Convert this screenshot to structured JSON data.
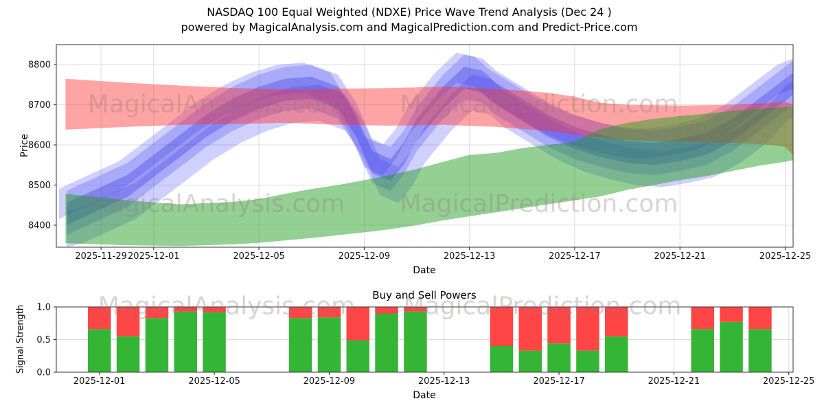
{
  "header": {
    "title": "NASDAQ 100 Equal Weighted (NDXE) Price Wave Trend Analysis (Dec 24 )",
    "subtitle": "powered by MagicalAnalysis.com and MagicalPrediction.com and Predict-Price.com"
  },
  "watermarks": {
    "analysis": "MagicalAnalysis.com",
    "prediction": "MagicalPrediction.com"
  },
  "chart_data": [
    {
      "id": "price",
      "type": "area",
      "title": "",
      "xlabel": "Date",
      "ylabel": "Price",
      "x_epoch": "2025-11-28",
      "x_unit": "days since 2025-11-28",
      "xlim_days": [
        -0.7,
        27.3
      ],
      "ylim": [
        8345,
        8850
      ],
      "grid": true,
      "x_ticks": [
        {
          "day": 1,
          "label": "2025-11-29"
        },
        {
          "day": 3,
          "label": "2025-12-01"
        },
        {
          "day": 7,
          "label": "2025-12-05"
        },
        {
          "day": 11,
          "label": "2025-12-09"
        },
        {
          "day": 15,
          "label": "2025-12-13"
        },
        {
          "day": 19,
          "label": "2025-12-17"
        },
        {
          "day": 23,
          "label": "2025-12-21"
        },
        {
          "day": 27,
          "label": "2025-12-25"
        }
      ],
      "y_ticks": [
        {
          "v": 8400,
          "label": "8400"
        },
        {
          "v": 8500,
          "label": "8500"
        },
        {
          "v": 8600,
          "label": "8600"
        },
        {
          "v": 8700,
          "label": "8700"
        },
        {
          "v": 8800,
          "label": "8800"
        }
      ],
      "bands": [
        {
          "name": "blue-wave-band-1",
          "color": "#4343f5",
          "opacity": 0.27,
          "d": [
            -0.3,
            0,
            1,
            2,
            3,
            4,
            5,
            6,
            7,
            8,
            9,
            10,
            10.7,
            11.3,
            12,
            12.5,
            13,
            14,
            14.8,
            15.5,
            16,
            17,
            18,
            19,
            20,
            21,
            22,
            23,
            24,
            25,
            26,
            27,
            27.3
          ],
          "lo": [
            8375,
            8385,
            8415,
            8445,
            8495,
            8545,
            8595,
            8635,
            8665,
            8685,
            8690,
            8665,
            8595,
            8505,
            8485,
            8525,
            8585,
            8665,
            8715,
            8705,
            8675,
            8635,
            8595,
            8565,
            8545,
            8530,
            8525,
            8535,
            8550,
            8585,
            8635,
            8685,
            8700
          ],
          "hi": [
            8485,
            8495,
            8525,
            8555,
            8605,
            8655,
            8705,
            8745,
            8775,
            8795,
            8800,
            8775,
            8705,
            8615,
            8595,
            8635,
            8695,
            8775,
            8825,
            8815,
            8785,
            8745,
            8705,
            8675,
            8655,
            8640,
            8635,
            8645,
            8660,
            8695,
            8745,
            8795,
            8810
          ]
        },
        {
          "name": "blue-wave-band-2",
          "color": "#4343f5",
          "opacity": 0.25,
          "d": [
            -0.6,
            -0.3,
            0.7,
            1.7,
            2.7,
            3.7,
            4.7,
            5.7,
            6.7,
            7.7,
            8.7,
            9.7,
            10.4,
            11,
            11.7,
            12.2,
            12.7,
            13.7,
            14.5,
            15.2,
            15.7,
            16.7,
            17.7,
            18.7,
            19.7,
            20.7,
            21.7,
            22.7,
            23.7,
            24.7,
            25.7,
            26.7,
            27.3
          ],
          "lo": [
            8415,
            8425,
            8455,
            8485,
            8535,
            8585,
            8635,
            8675,
            8705,
            8725,
            8730,
            8705,
            8635,
            8545,
            8525,
            8565,
            8625,
            8705,
            8755,
            8745,
            8715,
            8675,
            8635,
            8605,
            8585,
            8570,
            8565,
            8575,
            8590,
            8625,
            8675,
            8725,
            8740
          ],
          "hi": [
            8490,
            8500,
            8530,
            8560,
            8610,
            8660,
            8710,
            8750,
            8780,
            8800,
            8805,
            8780,
            8710,
            8620,
            8600,
            8640,
            8700,
            8780,
            8830,
            8820,
            8790,
            8750,
            8710,
            8680,
            8660,
            8645,
            8640,
            8650,
            8665,
            8700,
            8750,
            8800,
            8815
          ]
        },
        {
          "name": "blue-wave-band-3",
          "color": "#4343f5",
          "opacity": 0.25,
          "d": [
            -0.3,
            0.3,
            1.3,
            2.3,
            3.3,
            4.3,
            5.3,
            6.3,
            7.3,
            8.3,
            9.3,
            10.3,
            11,
            11.6,
            12.3,
            12.8,
            13.3,
            14.3,
            15.1,
            15.8,
            16.3,
            17.3,
            18.3,
            19.3,
            20.3,
            21.3,
            22.3,
            23.3,
            24.3,
            25.3,
            26.3,
            27,
            27.3
          ],
          "lo": [
            8345,
            8355,
            8385,
            8415,
            8465,
            8515,
            8565,
            8605,
            8635,
            8655,
            8660,
            8635,
            8565,
            8475,
            8455,
            8495,
            8555,
            8635,
            8685,
            8675,
            8645,
            8605,
            8565,
            8535,
            8515,
            8500,
            8495,
            8505,
            8520,
            8555,
            8605,
            8655,
            8670
          ],
          "hi": [
            8435,
            8445,
            8475,
            8505,
            8555,
            8605,
            8655,
            8695,
            8725,
            8745,
            8750,
            8725,
            8655,
            8565,
            8545,
            8585,
            8645,
            8725,
            8775,
            8765,
            8735,
            8695,
            8655,
            8625,
            8605,
            8590,
            8585,
            8595,
            8610,
            8645,
            8695,
            8745,
            8760
          ]
        },
        {
          "name": "blue-wave-band-4",
          "color": "#3030e0",
          "opacity": 0.32,
          "d": [
            -0.3,
            0,
            1,
            2,
            3,
            4,
            5,
            6,
            7,
            8,
            9,
            10,
            10.7,
            11.3,
            12,
            12.5,
            13,
            14,
            14.8,
            15.5,
            16,
            17,
            18,
            19,
            20,
            21,
            22,
            23,
            24,
            25,
            26,
            27,
            27.3
          ],
          "lo": [
            8400,
            8410,
            8440,
            8470,
            8520,
            8570,
            8620,
            8660,
            8690,
            8710,
            8715,
            8690,
            8620,
            8530,
            8510,
            8550,
            8610,
            8690,
            8740,
            8730,
            8700,
            8660,
            8620,
            8590,
            8570,
            8555,
            8550,
            8560,
            8575,
            8610,
            8660,
            8710,
            8725
          ],
          "hi": [
            8455,
            8465,
            8495,
            8525,
            8575,
            8625,
            8675,
            8715,
            8745,
            8765,
            8770,
            8745,
            8675,
            8585,
            8565,
            8605,
            8665,
            8745,
            8795,
            8785,
            8755,
            8715,
            8675,
            8645,
            8625,
            8610,
            8605,
            8615,
            8630,
            8665,
            8715,
            8765,
            8780
          ]
        },
        {
          "name": "red-resistance-band",
          "color": "#ff3030",
          "opacity": 0.44,
          "d": [
            -0.35,
            2,
            4,
            6,
            8,
            10,
            12,
            14,
            16,
            18,
            19,
            20,
            21,
            23,
            25,
            26.5,
            27,
            27.3
          ],
          "lo": [
            8638,
            8645,
            8650,
            8652,
            8655,
            8650,
            8648,
            8650,
            8645,
            8635,
            8625,
            8618,
            8612,
            8608,
            8605,
            8600,
            8595,
            8575
          ],
          "hi": [
            8765,
            8755,
            8748,
            8742,
            8738,
            8740,
            8742,
            8745,
            8740,
            8730,
            8720,
            8705,
            8700,
            8698,
            8700,
            8705,
            8708,
            8700
          ]
        },
        {
          "name": "green-support-band",
          "color": "#1f9a1f",
          "opacity": 0.48,
          "d": [
            -0.35,
            2,
            4,
            6,
            7,
            8,
            9,
            10,
            11,
            12,
            13,
            14,
            15,
            16,
            17,
            18,
            19,
            20,
            21,
            22,
            23,
            24,
            25,
            26,
            27,
            27.3
          ],
          "lo": [
            8355,
            8350,
            8348,
            8352,
            8356,
            8362,
            8368,
            8375,
            8382,
            8390,
            8400,
            8412,
            8422,
            8432,
            8442,
            8452,
            8462,
            8472,
            8488,
            8500,
            8512,
            8522,
            8535,
            8548,
            8558,
            8562
          ],
          "hi": [
            8478,
            8462,
            8452,
            8458,
            8465,
            8478,
            8490,
            8500,
            8512,
            8525,
            8540,
            8558,
            8575,
            8580,
            8592,
            8600,
            8608,
            8640,
            8655,
            8665,
            8672,
            8678,
            8685,
            8690,
            8695,
            8695
          ]
        }
      ]
    },
    {
      "id": "signals",
      "type": "bar",
      "title": "Buy and Sell Powers",
      "xlabel": "Date",
      "ylabel": "Signal Strength",
      "x_epoch": "2025-11-28",
      "x_unit": "days since 2025-11-28",
      "xlim_days": [
        1.5,
        27.15
      ],
      "ylim": [
        0,
        1
      ],
      "grid": true,
      "bar_width_days": 0.8,
      "colors": {
        "buy": "#35b535",
        "sell": "#ff4545"
      },
      "x_ticks": [
        {
          "day": 3,
          "label": "2025-12-01"
        },
        {
          "day": 7,
          "label": "2025-12-05"
        },
        {
          "day": 11,
          "label": "2025-12-09"
        },
        {
          "day": 15,
          "label": "2025-12-13"
        },
        {
          "day": 19,
          "label": "2025-12-17"
        },
        {
          "day": 23,
          "label": "2025-12-21"
        },
        {
          "day": 27,
          "label": "2025-12-25"
        }
      ],
      "y_ticks": [
        {
          "v": 0,
          "label": "0.0"
        },
        {
          "v": 0.5,
          "label": "0.5"
        },
        {
          "v": 1,
          "label": "1.0"
        }
      ],
      "bars": [
        {
          "date": "2025-12-01",
          "day": 3,
          "buy": 0.66,
          "sell": 0.34
        },
        {
          "date": "2025-12-02",
          "day": 4,
          "buy": 0.55,
          "sell": 0.45
        },
        {
          "date": "2025-12-03",
          "day": 5,
          "buy": 0.83,
          "sell": 0.17
        },
        {
          "date": "2025-12-04",
          "day": 6,
          "buy": 0.93,
          "sell": 0.07
        },
        {
          "date": "2025-12-05",
          "day": 7,
          "buy": 0.92,
          "sell": 0.08
        },
        {
          "date": "2025-12-08",
          "day": 10,
          "buy": 0.83,
          "sell": 0.17
        },
        {
          "date": "2025-12-09",
          "day": 11,
          "buy": 0.84,
          "sell": 0.16
        },
        {
          "date": "2025-12-10",
          "day": 12,
          "buy": 0.49,
          "sell": 0.51
        },
        {
          "date": "2025-12-11",
          "day": 13,
          "buy": 0.9,
          "sell": 0.1
        },
        {
          "date": "2025-12-12",
          "day": 14,
          "buy": 0.93,
          "sell": 0.07
        },
        {
          "date": "2025-12-15",
          "day": 17,
          "buy": 0.4,
          "sell": 0.6
        },
        {
          "date": "2025-12-16",
          "day": 18,
          "buy": 0.33,
          "sell": 0.67
        },
        {
          "date": "2025-12-17",
          "day": 19,
          "buy": 0.44,
          "sell": 0.56
        },
        {
          "date": "2025-12-18",
          "day": 20,
          "buy": 0.33,
          "sell": 0.67
        },
        {
          "date": "2025-12-19",
          "day": 21,
          "buy": 0.55,
          "sell": 0.45
        },
        {
          "date": "2025-12-22",
          "day": 24,
          "buy": 0.66,
          "sell": 0.34
        },
        {
          "date": "2025-12-23",
          "day": 25,
          "buy": 0.77,
          "sell": 0.23
        },
        {
          "date": "2025-12-24",
          "day": 26,
          "buy": 0.66,
          "sell": 0.34
        }
      ]
    }
  ]
}
